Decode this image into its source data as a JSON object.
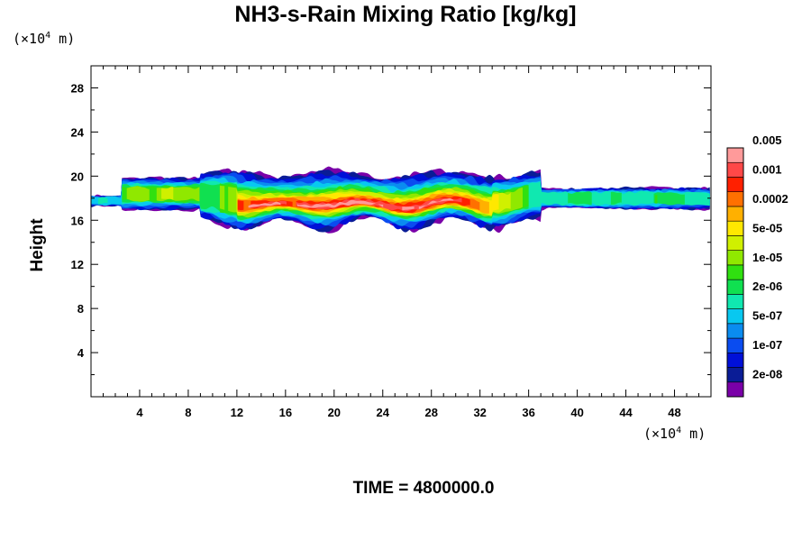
{
  "chart_data": {
    "type": "heatmap",
    "title": "NH3-s-Rain Mixing Ratio [kg/kg]",
    "ylabel": "Height",
    "xlabel": "",
    "x_unit_prefix": "(×10",
    "x_unit_exp": "4",
    "x_unit_suffix": " m)",
    "y_unit_prefix": "(×10",
    "y_unit_exp": "4",
    "y_unit_suffix": " m)",
    "xlim": [
      0,
      51
    ],
    "ylim": [
      0,
      30
    ],
    "x_ticks": [
      4,
      8,
      12,
      16,
      20,
      24,
      28,
      32,
      36,
      40,
      44,
      48
    ],
    "y_ticks": [
      4,
      8,
      12,
      16,
      20,
      24,
      28
    ],
    "colorbar": {
      "colors": [
        "#7a00a8",
        "#0a1c96",
        "#0010d8",
        "#0a4cf0",
        "#0a8cf0",
        "#08c8f0",
        "#10e8b0",
        "#10e050",
        "#30e010",
        "#90e800",
        "#d0f000",
        "#ffe800",
        "#ffb000",
        "#ff7000",
        "#ff2000",
        "#ff4848",
        "#ff9a9a"
      ],
      "labels": [
        "2e-08",
        "1e-07",
        "5e-07",
        "2e-06",
        "1e-05",
        "5e-05",
        "0.0002",
        "0.001",
        "0.005"
      ]
    },
    "field_summary": {
      "layer_bottom_height": 15.5,
      "layer_top_height": 20.5,
      "core_x_range": [
        13,
        32
      ],
      "max_level": "0.005"
    }
  },
  "footer": {
    "time_text": "TIME = 4800000.0"
  }
}
